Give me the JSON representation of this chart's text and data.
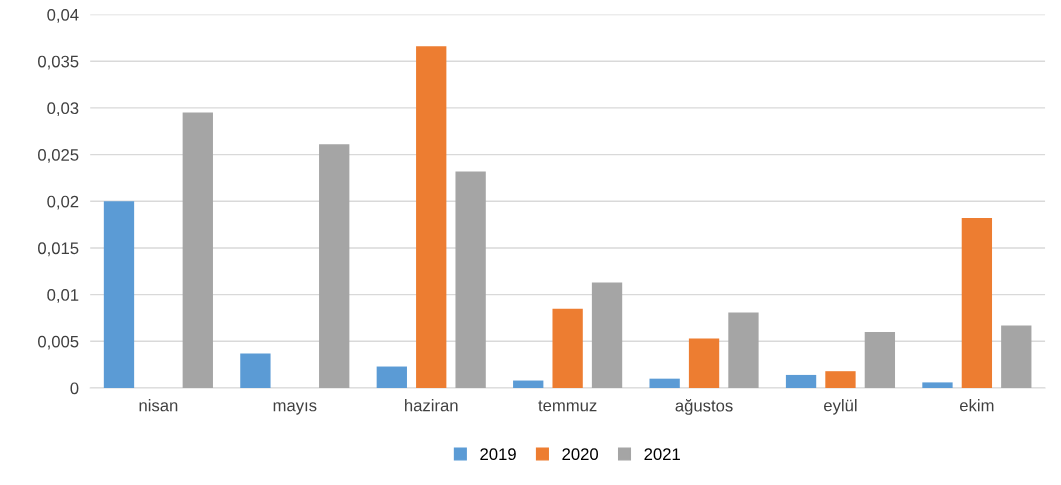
{
  "chart_data": {
    "type": "bar",
    "categories": [
      "nisan",
      "mayıs",
      "haziran",
      "temmuz",
      "ağustos",
      "eylül",
      "ekim"
    ],
    "series": [
      {
        "name": "2019",
        "color": "#5b9bd5",
        "values": [
          0.02,
          0.0037,
          0.0023,
          0.0008,
          0.001,
          0.0014,
          0.0006
        ]
      },
      {
        "name": "2020",
        "color": "#ed7d31",
        "values": [
          0,
          0,
          0.0366,
          0.0085,
          0.0053,
          0.0018,
          0.0182
        ]
      },
      {
        "name": "2021",
        "color": "#a5a5a5",
        "values": [
          0.0295,
          0.0261,
          0.0232,
          0.0113,
          0.0081,
          0.006,
          0.0067
        ]
      }
    ],
    "ylim": [
      0,
      0.04
    ],
    "yticks": [
      {
        "value": 0,
        "label": "0"
      },
      {
        "value": 0.005,
        "label": "0,005"
      },
      {
        "value": 0.01,
        "label": "0,01"
      },
      {
        "value": 0.015,
        "label": "0,015"
      },
      {
        "value": 0.02,
        "label": "0,02"
      },
      {
        "value": 0.025,
        "label": "0,025"
      },
      {
        "value": 0.03,
        "label": "0,03"
      },
      {
        "value": 0.035,
        "label": "0,035"
      },
      {
        "value": 0.04,
        "label": "0,04"
      }
    ],
    "grid": "y",
    "legend": "bottom"
  }
}
